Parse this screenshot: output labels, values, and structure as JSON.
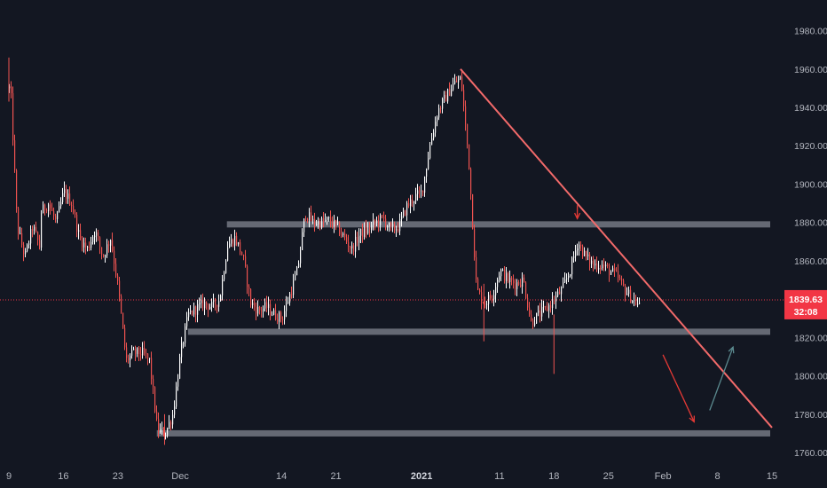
{
  "chart_data": {
    "type": "candlestick",
    "title": "",
    "ylim": [
      1754,
      1996
    ],
    "y_ticks": [
      1760,
      1780,
      1800,
      1820,
      1840,
      1860,
      1880,
      1900,
      1920,
      1940,
      1960,
      1980
    ],
    "y_tick_labels": [
      "1760.00",
      "1780.00",
      "1800.00",
      "1820.00",
      "1840.00",
      "1860.00",
      "1880.00",
      "1900.00",
      "1920.00",
      "1940.00",
      "1960.00",
      "1980.00"
    ],
    "x_axis": {
      "start": "2020-11-09",
      "end": "2021-02-15",
      "labels": [
        {
          "date": "2020-11-09",
          "label": "9",
          "bold": false
        },
        {
          "date": "2020-11-16",
          "label": "16",
          "bold": false
        },
        {
          "date": "2020-11-23",
          "label": "23",
          "bold": false
        },
        {
          "date": "2020-12-01",
          "label": "Dec",
          "bold": false
        },
        {
          "date": "2020-12-14",
          "label": "14",
          "bold": false
        },
        {
          "date": "2020-12-21",
          "label": "21",
          "bold": false
        },
        {
          "date": "2021-01-01",
          "label": "2021",
          "bold": true
        },
        {
          "date": "2021-01-11",
          "label": "11",
          "bold": false
        },
        {
          "date": "2021-01-18",
          "label": "18",
          "bold": false
        },
        {
          "date": "2021-01-25",
          "label": "25",
          "bold": false
        },
        {
          "date": "2021-02-01",
          "label": "Feb",
          "bold": false
        },
        {
          "date": "2021-02-08",
          "label": "8",
          "bold": false
        },
        {
          "date": "2021-02-15",
          "label": "15",
          "bold": false
        }
      ]
    },
    "price_path": [
      [
        "2020-11-09",
        1950
      ],
      [
        "2020-11-09",
        1964
      ],
      [
        "2020-11-10",
        1878
      ],
      [
        "2020-11-11",
        1862
      ],
      [
        "2020-11-12",
        1878
      ],
      [
        "2020-11-13",
        1866
      ],
      [
        "2020-11-13",
        1885
      ],
      [
        "2020-11-14",
        1890
      ],
      [
        "2020-11-15",
        1880
      ],
      [
        "2020-11-16",
        1896
      ],
      [
        "2020-11-17",
        1890
      ],
      [
        "2020-11-18",
        1872
      ],
      [
        "2020-11-19",
        1866
      ],
      [
        "2020-11-20",
        1876
      ],
      [
        "2020-11-21",
        1862
      ],
      [
        "2020-11-22",
        1872
      ],
      [
        "2020-11-23",
        1845
      ],
      [
        "2020-11-24",
        1808
      ],
      [
        "2020-11-25",
        1812
      ],
      [
        "2020-11-26",
        1812
      ],
      [
        "2020-11-27",
        1808
      ],
      [
        "2020-11-28",
        1772
      ],
      [
        "2020-11-29",
        1770
      ],
      [
        "2020-11-30",
        1780
      ],
      [
        "2020-12-01",
        1812
      ],
      [
        "2020-12-02",
        1832
      ],
      [
        "2020-12-03",
        1835
      ],
      [
        "2020-12-04",
        1838
      ],
      [
        "2020-12-05",
        1836
      ],
      [
        "2020-12-06",
        1840
      ],
      [
        "2020-12-07",
        1868
      ],
      [
        "2020-12-08",
        1872
      ],
      [
        "2020-12-09",
        1862
      ],
      [
        "2020-12-10",
        1838
      ],
      [
        "2020-12-11",
        1834
      ],
      [
        "2020-12-12",
        1836
      ],
      [
        "2020-12-13",
        1832
      ],
      [
        "2020-12-14",
        1830
      ],
      [
        "2020-12-15",
        1842
      ],
      [
        "2020-12-16",
        1855
      ],
      [
        "2020-12-17",
        1885
      ],
      [
        "2020-12-18",
        1880
      ],
      [
        "2020-12-19",
        1880
      ],
      [
        "2020-12-20",
        1881
      ],
      [
        "2020-12-21",
        1878
      ],
      [
        "2020-12-22",
        1872
      ],
      [
        "2020-12-23",
        1866
      ],
      [
        "2020-12-24",
        1874
      ],
      [
        "2020-12-25",
        1876
      ],
      [
        "2020-12-26",
        1880
      ],
      [
        "2020-12-27",
        1882
      ],
      [
        "2020-12-28",
        1876
      ],
      [
        "2020-12-29",
        1878
      ],
      [
        "2020-12-30",
        1888
      ],
      [
        "2020-12-31",
        1893
      ],
      [
        "2021-01-01",
        1896
      ],
      [
        "2021-01-02",
        1920
      ],
      [
        "2021-01-03",
        1938
      ],
      [
        "2021-01-04",
        1945
      ],
      [
        "2021-01-05",
        1952
      ],
      [
        "2021-01-06",
        1955
      ],
      [
        "2021-01-07",
        1912
      ],
      [
        "2021-01-08",
        1845
      ],
      [
        "2021-01-09",
        1838
      ],
      [
        "2021-01-10",
        1842
      ],
      [
        "2021-01-11",
        1855
      ],
      [
        "2021-01-12",
        1850
      ],
      [
        "2021-01-13",
        1848
      ],
      [
        "2021-01-14",
        1850
      ],
      [
        "2021-01-15",
        1828
      ],
      [
        "2021-01-16",
        1832
      ],
      [
        "2021-01-17",
        1835
      ],
      [
        "2021-01-18",
        1840
      ],
      [
        "2021-01-19",
        1845
      ],
      [
        "2021-01-20",
        1855
      ],
      [
        "2021-01-21",
        1870
      ],
      [
        "2021-01-22",
        1862
      ],
      [
        "2021-01-23",
        1858
      ],
      [
        "2021-01-24",
        1858
      ],
      [
        "2021-01-25",
        1855
      ],
      [
        "2021-01-26",
        1852
      ],
      [
        "2021-01-27",
        1845
      ],
      [
        "2021-01-28",
        1840
      ],
      [
        "2021-01-29",
        1836
      ]
    ],
    "current_price": 1839.63,
    "current_price_label": "1839.63",
    "countdown_label": "32:08",
    "annotations": {
      "horizontal_zones": [
        {
          "date_from": "2020-12-07",
          "date_to": "2021-02-15",
          "price": 1879
        },
        {
          "date_from": "2020-12-02",
          "date_to": "2021-02-15",
          "price": 1823
        },
        {
          "date_from": "2020-11-28",
          "date_to": "2021-02-15",
          "price": 1770
        }
      ],
      "trendline": {
        "from": [
          "2021-01-06",
          1960
        ],
        "to": [
          "2021-02-15",
          1773
        ]
      },
      "arrows": [
        {
          "type": "down",
          "from": [
            "2021-01-21",
            1889
          ],
          "to": [
            "2021-01-21",
            1882
          ]
        },
        {
          "type": "down",
          "from": [
            "2021-02-01",
            1811
          ],
          "to": [
            "2021-02-05",
            1776
          ]
        },
        {
          "type": "up",
          "from": [
            "2021-02-07",
            1782
          ],
          "to": [
            "2021-02-10",
            1815
          ]
        }
      ]
    },
    "colors": {
      "background": "#131722",
      "up": "#ffffff",
      "down": "#ef5350",
      "zone": "#787b86",
      "trendline": "#f26a6a",
      "down_arrow": "#e53935",
      "up_arrow": "#5b8a8f",
      "axis_text": "#b2b5be",
      "price_badge": "#f23645"
    }
  }
}
